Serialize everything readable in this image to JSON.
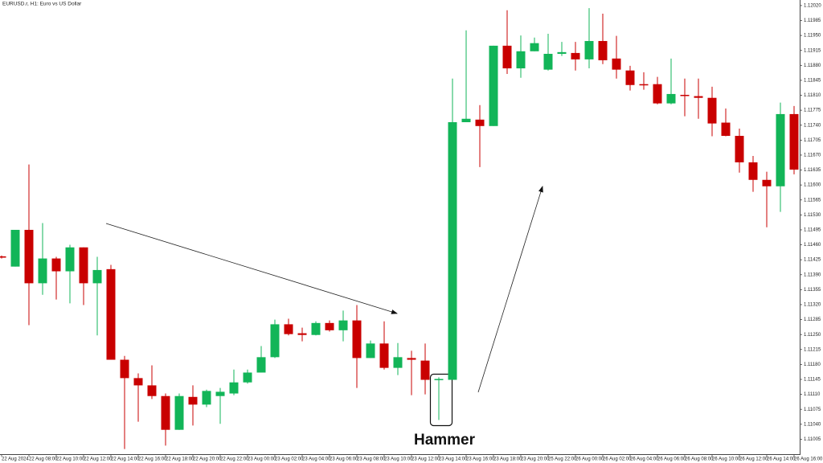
{
  "chart_data": {
    "type": "candlestick",
    "title": "EURUSD.r, H1:  Euro vs US Dollar",
    "annotation": "Hammer",
    "up_color": "#12b558",
    "down_color": "#c90000",
    "categories": [
      "22 Aug 2024",
      null,
      "22 Aug 08:00",
      null,
      "22 Aug 10:00",
      null,
      "22 Aug 12:00",
      null,
      "22 Aug 14:00",
      null,
      "22 Aug 16:00",
      null,
      "22 Aug 18:00",
      null,
      "22 Aug 20:00",
      null,
      "22 Aug 22:00",
      null,
      "23 Aug 00:00",
      null,
      "23 Aug 02:00",
      null,
      "23 Aug 04:00",
      null,
      "23 Aug 06:00",
      null,
      "23 Aug 08:00",
      null,
      "23 Aug 10:00",
      null,
      "23 Aug 12:00",
      null,
      "23 Aug 14:00",
      null,
      "23 Aug 16:00",
      null,
      "23 Aug 18:00",
      null,
      "23 Aug 20:00",
      null,
      "25 Aug 22:00",
      null,
      "26 Aug 00:00",
      null,
      "26 Aug 02:00",
      null,
      "26 Aug 04:00",
      null,
      "26 Aug 06:00",
      null,
      "26 Aug 08:00",
      null,
      "26 Aug 10:00",
      null,
      "26 Aug 12:00",
      null,
      "26 Aug 14:00",
      null,
      "26 Aug 16:00"
    ],
    "open": [
      1.11433,
      1.11409,
      1.11495,
      1.1137,
      1.11428,
      1.11398,
      1.11454,
      1.1137,
      1.11403,
      1.11191,
      1.11148,
      1.11131,
      1.11106,
      1.11027,
      1.11104,
      1.11086,
      1.11106,
      1.11112,
      1.11138,
      1.11161,
      1.11197,
      1.11274,
      1.11253,
      1.11249,
      1.11277,
      1.1126,
      1.11283,
      1.11195,
      1.11229,
      1.11172,
      1.11195,
      1.11189,
      1.11144,
      1.11144,
      1.11747,
      1.11753,
      1.11738,
      1.11926,
      1.11873,
      1.11913,
      1.1187,
      1.11907,
      1.11909,
      1.11894,
      1.11937,
      1.11896,
      1.11868,
      1.11836,
      1.11836,
      1.11791,
      1.11811,
      1.11808,
      1.11804,
      1.11746,
      1.11715,
      1.11653,
      1.11612,
      1.11597,
      1.11766
    ],
    "high": [
      1.11435,
      1.11495,
      1.11648,
      1.11511,
      1.11432,
      1.1146,
      1.11454,
      1.11432,
      1.11413,
      1.112,
      1.11159,
      1.11178,
      1.11112,
      1.11112,
      1.11131,
      1.11121,
      1.11125,
      1.11168,
      1.11168,
      1.11223,
      1.11285,
      1.11287,
      1.11266,
      1.11281,
      1.11283,
      1.11306,
      1.11319,
      1.11236,
      1.11281,
      1.1123,
      1.11212,
      1.11229,
      1.1115,
      1.11849,
      1.11962,
      1.11787,
      1.11926,
      1.12009,
      1.1195,
      1.11945,
      1.11954,
      1.11935,
      1.11935,
      1.12014,
      1.12001,
      1.11949,
      1.11879,
      1.11864,
      1.11853,
      1.11896,
      1.11849,
      1.11849,
      1.1183,
      1.11779,
      1.11732,
      1.11668,
      1.11631,
      1.11793,
      1.11785
    ],
    "low": [
      1.11428,
      1.11409,
      1.11272,
      1.11343,
      1.11332,
      1.11323,
      1.11319,
      1.11248,
      1.11191,
      1.10982,
      1.11046,
      1.11099,
      1.1099,
      1.11027,
      1.11037,
      1.1108,
      1.11041,
      1.11108,
      1.11135,
      1.11161,
      1.11195,
      1.11248,
      1.11234,
      1.11248,
      1.11257,
      1.11234,
      1.11125,
      1.11195,
      1.11168,
      1.11155,
      1.11108,
      1.1111,
      1.1105,
      1.11144,
      1.11747,
      1.11642,
      1.11738,
      1.1186,
      1.11851,
      1.11913,
      1.11868,
      1.11902,
      1.11868,
      1.11873,
      1.11883,
      1.11849,
      1.11821,
      1.11823,
      1.11789,
      1.11789,
      1.11761,
      1.11755,
      1.11714,
      1.11714,
      1.11629,
      1.11584,
      1.11501,
      1.11537,
      1.11625
    ],
    "close": [
      1.1143,
      1.11495,
      1.1137,
      1.11428,
      1.11398,
      1.11454,
      1.1137,
      1.11401,
      1.11191,
      1.11148,
      1.11131,
      1.11106,
      1.11027,
      1.11106,
      1.11086,
      1.11118,
      1.11116,
      1.11138,
      1.11161,
      1.11197,
      1.11274,
      1.11251,
      1.11249,
      1.11277,
      1.1126,
      1.11283,
      1.11195,
      1.11229,
      1.11172,
      1.11197,
      1.11191,
      1.11144,
      1.11146,
      1.11747,
      1.11755,
      1.11738,
      1.11926,
      1.11873,
      1.11913,
      1.11932,
      1.11907,
      1.11911,
      1.11894,
      1.11937,
      1.11892,
      1.1187,
      1.11834,
      1.11834,
      1.11791,
      1.11813,
      1.11809,
      1.11804,
      1.11744,
      1.11715,
      1.11653,
      1.11612,
      1.11597,
      1.11766,
      1.11636
    ],
    "ylim": [
      1.1097,
      1.12033
    ],
    "yticks": [
      {
        "value": 1.1202,
        "label": "1.12020"
      },
      1.11985,
      {
        "value": 1.1195,
        "label": "1.11950"
      },
      1.11915,
      {
        "value": 1.1188,
        "label": "1.11880"
      },
      1.11845,
      {
        "value": 1.1181,
        "label": "1.11810"
      },
      1.11775,
      {
        "value": 1.1174,
        "label": "1.11740"
      },
      1.11705,
      {
        "value": 1.1167,
        "label": "1.11670"
      },
      1.11635,
      {
        "value": 1.116,
        "label": "1.11600"
      },
      1.11565,
      {
        "value": 1.1153,
        "label": "1.11530"
      },
      1.11495,
      {
        "value": 1.1146,
        "label": "1.11460"
      },
      1.11425,
      {
        "value": 1.1139,
        "label": "1.11390"
      },
      1.11355,
      {
        "value": 1.1132,
        "label": "1.11320"
      },
      1.11285,
      {
        "value": 1.1125,
        "label": "1.11250"
      },
      1.11215,
      {
        "value": 1.1118,
        "label": "1.11180"
      },
      1.11145,
      {
        "value": 1.1111,
        "label": "1.11110"
      },
      1.11075,
      {
        "value": 1.1104,
        "label": "1.11040"
      },
      1.11005
    ],
    "grid": false
  }
}
